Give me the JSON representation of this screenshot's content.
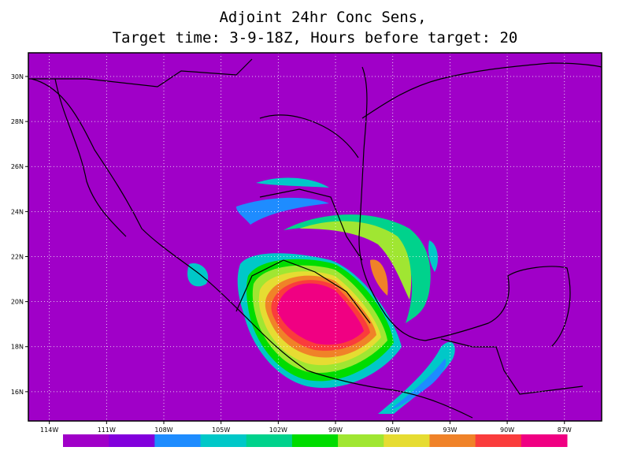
{
  "chart_data": {
    "type": "map",
    "title": [
      "Adjoint 24hr Conc Sens,",
      "Target time: 3-9-18Z, Hours before target: 20"
    ],
    "xlim": [
      -115.1,
      -85.05
    ],
    "ylim": [
      14.7,
      31.05
    ],
    "xticks": [
      {
        "value": -114,
        "label": "114W"
      },
      {
        "value": -111,
        "label": "111W"
      },
      {
        "value": -108,
        "label": "108W"
      },
      {
        "value": -105,
        "label": "105W"
      },
      {
        "value": -102,
        "label": "102W"
      },
      {
        "value": -99,
        "label": "99W"
      },
      {
        "value": -96,
        "label": "96W"
      },
      {
        "value": -93,
        "label": "93W"
      },
      {
        "value": -90,
        "label": "90W"
      },
      {
        "value": -87,
        "label": "87W"
      }
    ],
    "yticks": [
      {
        "value": 16,
        "label": "16N"
      },
      {
        "value": 18,
        "label": "18N"
      },
      {
        "value": 20,
        "label": "20N"
      },
      {
        "value": 22,
        "label": "22N"
      },
      {
        "value": 24,
        "label": "24N"
      },
      {
        "value": 26,
        "label": "26N"
      },
      {
        "value": 28,
        "label": "28N"
      },
      {
        "value": 30,
        "label": "30N"
      }
    ],
    "grid": true,
    "colorbar": [
      "#a000c8",
      "#8200dc",
      "#1e8cff",
      "#00c8c8",
      "#00d28c",
      "#00dc00",
      "#a0e632",
      "#e6dc32",
      "#f08228",
      "#fa3c3c",
      "#f00082"
    ]
  }
}
